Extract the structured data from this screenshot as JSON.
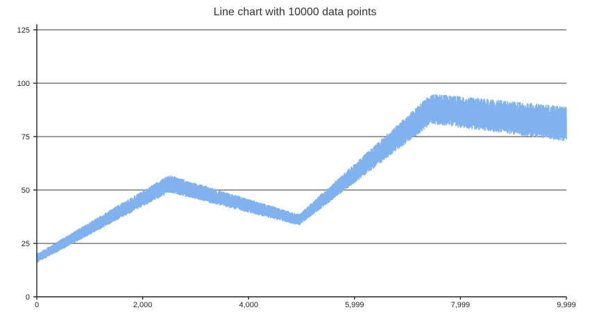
{
  "chart_data": {
    "type": "line",
    "title": "Line chart with 10000 data points",
    "xlabel": "",
    "ylabel": "",
    "xlim": [
      0,
      9999
    ],
    "ylim": [
      0,
      125
    ],
    "x_ticks": [
      "0",
      "2,000",
      "4,000",
      "5,999",
      "7,999",
      "9,999"
    ],
    "x_tick_values": [
      0,
      2000,
      4000,
      5999,
      7999,
      9999
    ],
    "y_ticks": [
      "0",
      "25",
      "50",
      "75",
      "100",
      "125"
    ],
    "y_tick_values": [
      0,
      25,
      50,
      75,
      100,
      125
    ],
    "grid": true,
    "legend": "none",
    "series": [
      {
        "color": "#7fb2ee",
        "point_count": 10000,
        "trend_x": [
          0,
          2500,
          4950,
          7450,
          9999
        ],
        "trend_y": [
          18,
          53,
          36,
          88,
          81
        ],
        "band_width_y": [
          4,
          8,
          5,
          14,
          16
        ]
      }
    ]
  }
}
